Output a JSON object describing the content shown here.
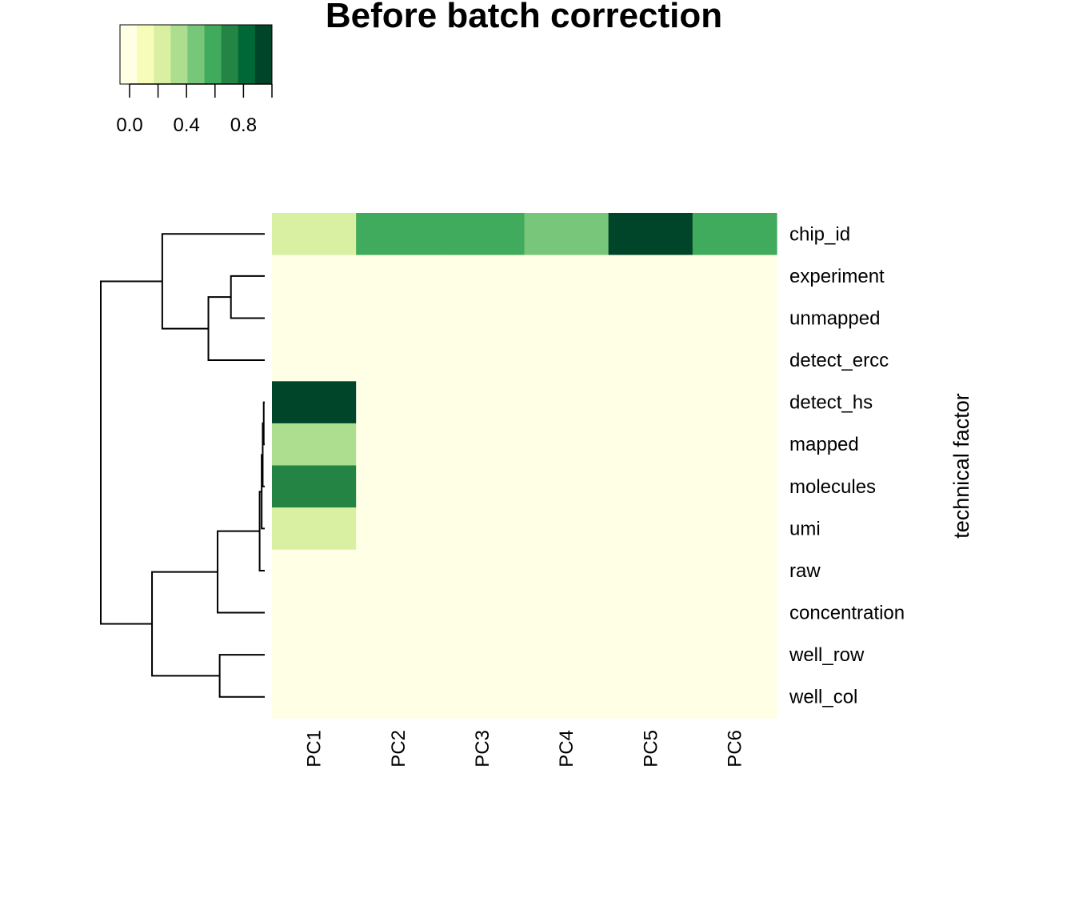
{
  "chart_data": {
    "type": "heatmap",
    "title": "Before batch correction",
    "xlabel": "",
    "ylabel": "technical factor",
    "columns": [
      "PC1",
      "PC2",
      "PC3",
      "PC4",
      "PC5",
      "PC6"
    ],
    "rows": [
      "chip_id",
      "experiment",
      "unmapped",
      "detect_ercc",
      "detect_hs",
      "mapped",
      "molecules",
      "umi",
      "raw",
      "concentration",
      "well_row",
      "well_col"
    ],
    "values": [
      [
        0.25,
        0.65,
        0.65,
        0.55,
        0.9,
        0.65
      ],
      [
        0.0,
        0.1,
        0.0,
        0.0,
        0.0,
        0.1
      ],
      [
        0.0,
        0.1,
        0.0,
        0.0,
        0.0,
        0.0
      ],
      [
        0.0,
        0.0,
        0.0,
        0.0,
        0.0,
        0.0
      ],
      [
        1.0,
        0.0,
        0.0,
        0.0,
        0.0,
        0.0
      ],
      [
        0.35,
        0.0,
        0.0,
        0.0,
        0.0,
        0.0
      ],
      [
        0.75,
        0.0,
        0.0,
        0.0,
        0.0,
        0.0
      ],
      [
        0.25,
        0.0,
        0.0,
        0.0,
        0.0,
        0.0
      ],
      [
        0.1,
        0.0,
        0.0,
        0.0,
        0.0,
        0.0
      ],
      [
        0.0,
        0.0,
        0.0,
        0.0,
        0.0,
        0.0
      ],
      [
        0.0,
        0.0,
        0.0,
        0.0,
        0.0,
        0.0
      ],
      [
        0.0,
        0.0,
        0.0,
        0.0,
        0.0,
        0.0
      ]
    ],
    "color_scale": {
      "range": [
        0,
        1
      ],
      "ticks": [
        0.0,
        0.2,
        0.4,
        0.6,
        0.8,
        1.0
      ],
      "tick_labels": [
        "0.0",
        "0.4",
        "0.8"
      ],
      "labeled_tick_values": [
        0.0,
        0.4,
        0.8
      ],
      "colors": [
        "#FFFFE5",
        "#F7FCB9",
        "#D9F0A3",
        "#ADDD8E",
        "#78C679",
        "#41AB5D",
        "#238443",
        "#006837",
        "#004529"
      ]
    },
    "dendrogram": {
      "side": "left",
      "leaf_order": [
        "chip_id",
        "experiment",
        "unmapped",
        "detect_ercc",
        "detect_hs",
        "mapped",
        "molecules",
        "umi",
        "raw",
        "concentration",
        "well_row",
        "well_col"
      ],
      "merges": [
        {
          "a": "leaf:experiment",
          "b": "leaf:unmapped",
          "height": 0.33
        },
        {
          "a": "node:0",
          "b": "leaf:detect_ercc",
          "height": 0.55
        },
        {
          "a": "leaf:chip_id",
          "b": "node:1",
          "height": 1.0
        },
        {
          "a": "leaf:detect_hs",
          "b": "leaf:mapped",
          "height": 0.01
        },
        {
          "a": "node:3",
          "b": "leaf:molecules",
          "height": 0.02
        },
        {
          "a": "node:4",
          "b": "leaf:umi",
          "height": 0.03
        },
        {
          "a": "node:5",
          "b": "leaf:raw",
          "height": 0.05
        },
        {
          "a": "node:6",
          "b": "leaf:concentration",
          "height": 0.46
        },
        {
          "a": "leaf:well_row",
          "b": "leaf:well_col",
          "height": 0.44
        },
        {
          "a": "node:7",
          "b": "node:8",
          "height": 1.1
        },
        {
          "a": "node:2",
          "b": "node:9",
          "height": 1.6
        }
      ]
    }
  }
}
